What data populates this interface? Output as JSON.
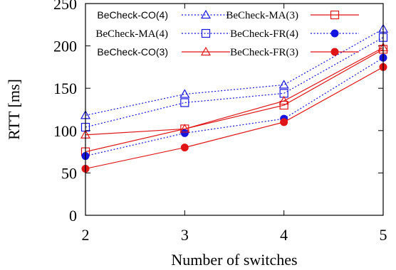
{
  "chart_data": {
    "type": "line",
    "xlabel": "Number of switches",
    "ylabel": "RTT [ms]",
    "x": [
      2,
      3,
      4,
      5
    ],
    "xlim": [
      2,
      5
    ],
    "ylim": [
      0,
      250
    ],
    "xticks": [
      "2",
      "3",
      "4",
      "5"
    ],
    "yticks": [
      "0",
      "50",
      "100",
      "150",
      "200",
      "250"
    ],
    "ytick_values": [
      0,
      50,
      100,
      150,
      200,
      250
    ],
    "grid": false,
    "legend_position": "top",
    "series": [
      {
        "name": "BeCheck-CO(4)",
        "values": [
          118,
          143,
          154,
          220
        ],
        "color": "#1515e0",
        "dash": "dotted",
        "marker": "triangle-open"
      },
      {
        "name": "BeCheck-MA(3)",
        "values": [
          75,
          102,
          130,
          196
        ],
        "color": "#e01515",
        "dash": "solid",
        "marker": "square-open"
      },
      {
        "name": "BeCheck-MA(4)",
        "values": [
          104,
          133,
          144,
          210
        ],
        "color": "#1515e0",
        "dash": "dotted",
        "marker": "square-open"
      },
      {
        "name": "BeCheck-FR(4)",
        "values": [
          70,
          97,
          114,
          186
        ],
        "color": "#1515e0",
        "dash": "dotted",
        "marker": "circle-filled"
      },
      {
        "name": "BeCheck-CO(3)",
        "values": [
          95,
          102,
          135,
          198
        ],
        "color": "#e01515",
        "dash": "solid",
        "marker": "triangle-open"
      },
      {
        "name": "BeCheck-FR(3)",
        "values": [
          55,
          80,
          110,
          175
        ],
        "color": "#e01515",
        "dash": "solid",
        "marker": "circle-filled"
      }
    ]
  }
}
